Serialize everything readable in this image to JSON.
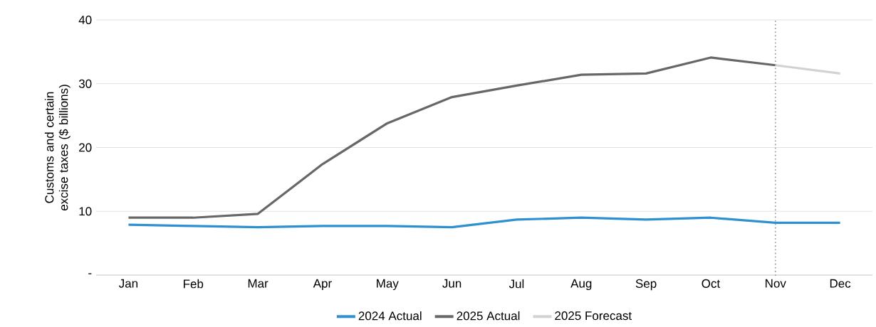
{
  "chart_data": {
    "type": "line",
    "ylabel": "Customs and certain excise taxes ($ billions)",
    "categories": [
      "Jan",
      "Feb",
      "Mar",
      "Apr",
      "May",
      "Jun",
      "Jul",
      "Aug",
      "Sep",
      "Oct",
      "Nov",
      "Dec"
    ],
    "series": [
      {
        "name": "2024 Actual",
        "color": "#2e8fd1",
        "values": [
          7.9,
          7.7,
          7.5,
          7.7,
          7.7,
          7.5,
          8.7,
          9.0,
          8.7,
          9.0,
          8.2,
          8.2
        ]
      },
      {
        "name": "2025 Actual",
        "color": "#676767",
        "values": [
          9.0,
          9.0,
          9.6,
          17.4,
          23.8,
          27.9,
          29.7,
          31.4,
          31.6,
          34.1,
          32.9,
          null
        ]
      },
      {
        "name": "2025 Forecast",
        "color": "#d2d2d2",
        "values": [
          null,
          null,
          null,
          null,
          null,
          null,
          null,
          null,
          null,
          null,
          32.9,
          31.6
        ]
      }
    ],
    "ylim": [
      0,
      40
    ],
    "yticks": [
      {
        "value": 0,
        "label": "-"
      },
      10,
      20,
      30,
      40
    ],
    "ref_lines": [
      {
        "axis": "x",
        "value": "Nov",
        "color": "#a0a0a0",
        "line_style": "dotted"
      }
    ],
    "grid": "y",
    "legend": "bottom",
    "marker": "none",
    "line_style": "solid"
  }
}
